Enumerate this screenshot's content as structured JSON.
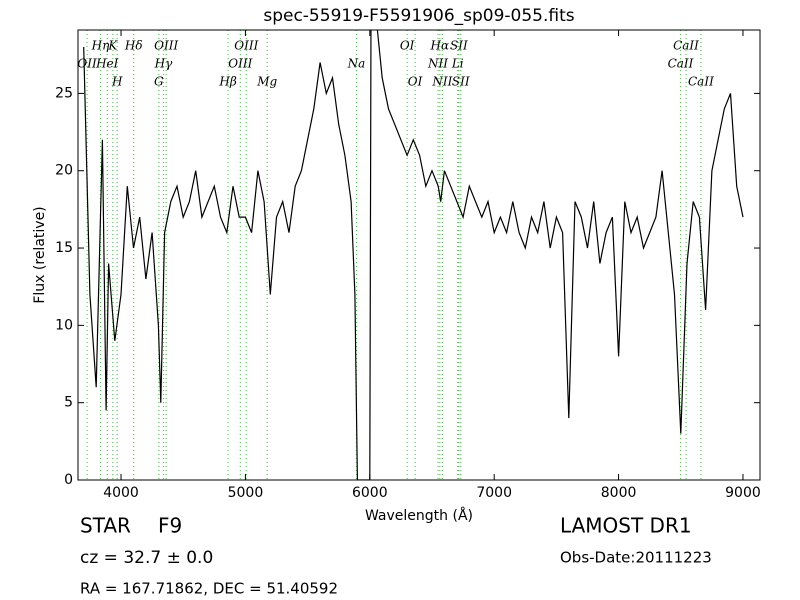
{
  "chart_data": {
    "type": "line",
    "title": "spec-55919-F5591906_sp09-055.fits",
    "xlabel": "Wavelength (Å)",
    "ylabel": "Flux (relative)",
    "xlim": [
      3654,
      9137
    ],
    "ylim": [
      0,
      29.1
    ],
    "xticks": [
      4000,
      5000,
      6000,
      7000,
      8000,
      9000
    ],
    "yticks": [
      0,
      5,
      10,
      15,
      20,
      25
    ],
    "x": [
      3700,
      3750,
      3800,
      3850,
      3880,
      3900,
      3950,
      4000,
      4050,
      4100,
      4150,
      4200,
      4250,
      4300,
      4320,
      4350,
      4400,
      4450,
      4500,
      4550,
      4600,
      4650,
      4700,
      4750,
      4800,
      4850,
      4900,
      4950,
      5000,
      5050,
      5100,
      5150,
      5200,
      5250,
      5300,
      5350,
      5400,
      5450,
      5500,
      5550,
      5600,
      5650,
      5700,
      5750,
      5800,
      5850,
      5880,
      5900,
      5950,
      6000,
      6010,
      6050,
      6100,
      6150,
      6200,
      6250,
      6300,
      6350,
      6400,
      6450,
      6500,
      6550,
      6570,
      6600,
      6650,
      6700,
      6750,
      6800,
      6850,
      6900,
      6950,
      7000,
      7050,
      7100,
      7150,
      7200,
      7250,
      7300,
      7350,
      7400,
      7450,
      7500,
      7550,
      7600,
      7650,
      7700,
      7750,
      7800,
      7850,
      7900,
      7950,
      8000,
      8050,
      8100,
      8150,
      8200,
      8250,
      8300,
      8350,
      8400,
      8450,
      8500,
      8550,
      8600,
      8650,
      8700,
      8750,
      8800,
      8850,
      8900,
      8950,
      9000
    ],
    "series": [
      {
        "name": "flux",
        "color": "#000000",
        "values": [
          28,
          12,
          6,
          22,
          4.5,
          14,
          9,
          12,
          19,
          15,
          17,
          13,
          16,
          10,
          5,
          16,
          18,
          19,
          17,
          18,
          20,
          17,
          18,
          19,
          17,
          16,
          19,
          17,
          17,
          16,
          20,
          18,
          12,
          17,
          18,
          16,
          19,
          20,
          22,
          24,
          27,
          25,
          26,
          23,
          21,
          18,
          12,
          0,
          0,
          0,
          30,
          30,
          26,
          24,
          23,
          22,
          21,
          22,
          21,
          19,
          20,
          19,
          18,
          20,
          19,
          18,
          17,
          19,
          18,
          17,
          18,
          16,
          17,
          16,
          18,
          16,
          15,
          17,
          16,
          18,
          15,
          17,
          16,
          4,
          18,
          17,
          15,
          18,
          14,
          16,
          17,
          8,
          18,
          16,
          17,
          15,
          16,
          17,
          20,
          16,
          12,
          3,
          14,
          18,
          17,
          11,
          20,
          22,
          24,
          25,
          19,
          17
        ]
      }
    ],
    "lines": [
      {
        "label": "OII",
        "wavelength": 3727,
        "row": 2
      },
      {
        "label": "Hη",
        "wavelength": 3835,
        "row": 1
      },
      {
        "label": "HeI",
        "wavelength": 3889,
        "row": 2
      },
      {
        "label": "K",
        "wavelength": 3934,
        "row": 1
      },
      {
        "label": "H",
        "wavelength": 3969,
        "row": 3
      },
      {
        "label": "Hδ",
        "wavelength": 4102,
        "row": 1
      },
      {
        "label": "G",
        "wavelength": 4304,
        "row": 3
      },
      {
        "label": "Hγ",
        "wavelength": 4341,
        "row": 2
      },
      {
        "label": "OIII",
        "wavelength": 4363,
        "row": 1
      },
      {
        "label": "Hβ",
        "wavelength": 4861,
        "row": 3
      },
      {
        "label": "OIII",
        "wavelength": 4959,
        "row": 2
      },
      {
        "label": "OIII",
        "wavelength": 5007,
        "row": 1
      },
      {
        "label": "Mg",
        "wavelength": 5175,
        "row": 3
      },
      {
        "label": "Na",
        "wavelength": 5893,
        "row": 2
      },
      {
        "label": "OI",
        "wavelength": 6300,
        "row": 1
      },
      {
        "label": "OI",
        "wavelength": 6364,
        "row": 3
      },
      {
        "label": "NII",
        "wavelength": 6548,
        "row": 2
      },
      {
        "label": "Hα",
        "wavelength": 6563,
        "row": 1
      },
      {
        "label": "NII",
        "wavelength": 6583,
        "row": 3
      },
      {
        "label": "Li",
        "wavelength": 6707,
        "row": 2
      },
      {
        "label": "SII",
        "wavelength": 6716,
        "row": 1
      },
      {
        "label": "SII",
        "wavelength": 6731,
        "row": 3
      },
      {
        "label": "CaII",
        "wavelength": 8498,
        "row": 2
      },
      {
        "label": "CaII",
        "wavelength": 8542,
        "row": 1
      },
      {
        "label": "CaII",
        "wavelength": 8662,
        "row": 3
      }
    ],
    "line_color": "#66bb66"
  },
  "info": {
    "object_class": "STAR",
    "subclass": "F9",
    "redshift": "cz = 32.7 ± 0.0",
    "coords": "RA = 167.71862, DEC = 51.40592",
    "survey": "LAMOST DR1",
    "obs_date": "Obs-Date:20111223"
  }
}
